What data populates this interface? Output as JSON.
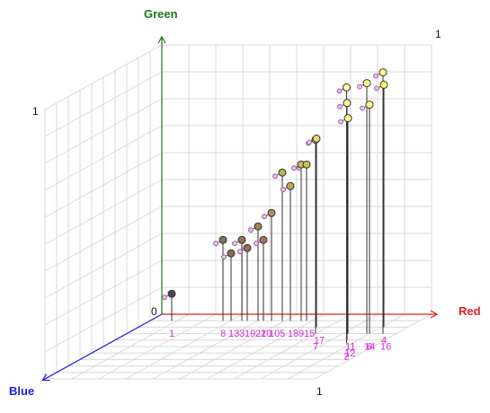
{
  "axes": {
    "x_name": "Red",
    "y_name": "Green",
    "z_name": "Blue",
    "x_color": "#e02020",
    "y_color": "#1a7a1a",
    "z_color": "#2020e0",
    "origin_label": "0",
    "x_end_label": "1",
    "y_end_label": "1",
    "z_end_label": "1",
    "corner_label": "1"
  },
  "colors": {
    "grid": "#d8d8d8",
    "stem": "#333333",
    "label": "#d62ad6",
    "link": "#d62ad6"
  },
  "chart_data": {
    "type": "scatter3d",
    "labels": [
      "1",
      "2",
      "3",
      "4",
      "5",
      "6",
      "7",
      "8",
      "9",
      "10",
      "11",
      "12",
      "13",
      "14",
      "15",
      "16",
      "17",
      "18",
      "19",
      "20",
      "21"
    ],
    "r": [
      0.08,
      0.88,
      0.34,
      0.91,
      0.49,
      0.9,
      0.7,
      0.27,
      0.56,
      0.45,
      0.82,
      0.86,
      0.3,
      0.89,
      0.58,
      0.95,
      0.66,
      0.52,
      0.36,
      0.42,
      0.4
    ],
    "g": [
      0.1,
      0.95,
      0.3,
      0.9,
      0.55,
      0.85,
      0.72,
      0.3,
      0.58,
      0.4,
      0.8,
      0.88,
      0.25,
      0.93,
      0.58,
      0.97,
      0.7,
      0.5,
      0.27,
      0.3,
      0.35
    ],
    "b": [
      0.1,
      0.45,
      0.1,
      0.2,
      0.1,
      0.3,
      0.3,
      0.1,
      0.1,
      0.1,
      0.3,
      0.4,
      0.1,
      0.3,
      0.1,
      0.3,
      0.2,
      0.1,
      0.1,
      0.1,
      0.1
    ]
  }
}
